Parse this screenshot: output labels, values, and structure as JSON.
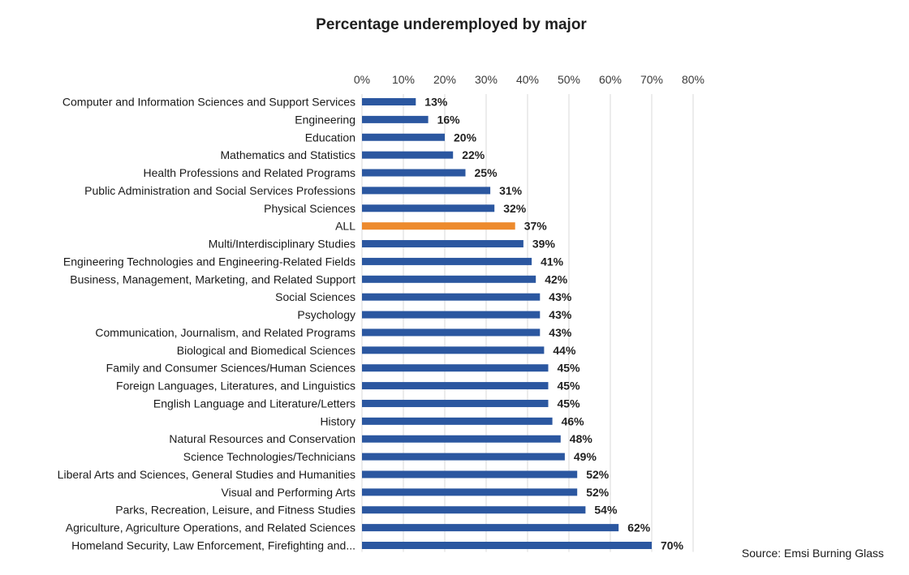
{
  "chart_data": {
    "type": "bar",
    "orientation": "horizontal",
    "title": "Percentage underemployed by major",
    "source": "Source: Emsi Burning Glass",
    "xlim": [
      0,
      80
    ],
    "x_ticks": [
      "0%",
      "10%",
      "20%",
      "30%",
      "40%",
      "50%",
      "60%",
      "70%",
      "80%"
    ],
    "x_tick_values": [
      0,
      10,
      20,
      30,
      40,
      50,
      60,
      70,
      80
    ],
    "x_axis_position": "top",
    "grid": true,
    "legend": "none",
    "colors": {
      "default": "#2b57a0",
      "highlight": "#ed8a2d",
      "grid": "#d9d9d9"
    },
    "highlight_category": "ALL",
    "categories": [
      "Computer and Information Sciences and Support Services",
      "Engineering",
      "Education",
      "Mathematics and Statistics",
      "Health Professions and Related Programs",
      "Public Administration and Social Services Professions",
      "Physical Sciences",
      "ALL",
      "Multi/Interdisciplinary Studies",
      "Engineering Technologies and Engineering-Related Fields",
      "Business, Management, Marketing, and Related Support",
      "Social Sciences",
      "Psychology",
      "Communication, Journalism, and Related Programs",
      "Biological and Biomedical Sciences",
      "Family and Consumer Sciences/Human Sciences",
      "Foreign Languages, Literatures, and Linguistics",
      "English Language and Literature/Letters",
      "History",
      "Natural Resources and Conservation",
      "Science Technologies/Technicians",
      "Liberal Arts and Sciences, General Studies and Humanities",
      "Visual and Performing Arts",
      "Parks, Recreation, Leisure, and Fitness Studies",
      "Agriculture, Agriculture Operations, and Related Sciences",
      "Homeland Security, Law Enforcement, Firefighting and..."
    ],
    "values": [
      13,
      16,
      20,
      22,
      25,
      31,
      32,
      37,
      39,
      41,
      42,
      43,
      43,
      43,
      44,
      45,
      45,
      45,
      46,
      48,
      49,
      52,
      52,
      54,
      62,
      70
    ],
    "value_labels": [
      "13%",
      "16%",
      "20%",
      "22%",
      "25%",
      "31%",
      "32%",
      "37%",
      "39%",
      "41%",
      "42%",
      "43%",
      "43%",
      "43%",
      "44%",
      "45%",
      "45%",
      "45%",
      "46%",
      "48%",
      "49%",
      "52%",
      "52%",
      "54%",
      "62%",
      "70%"
    ]
  }
}
